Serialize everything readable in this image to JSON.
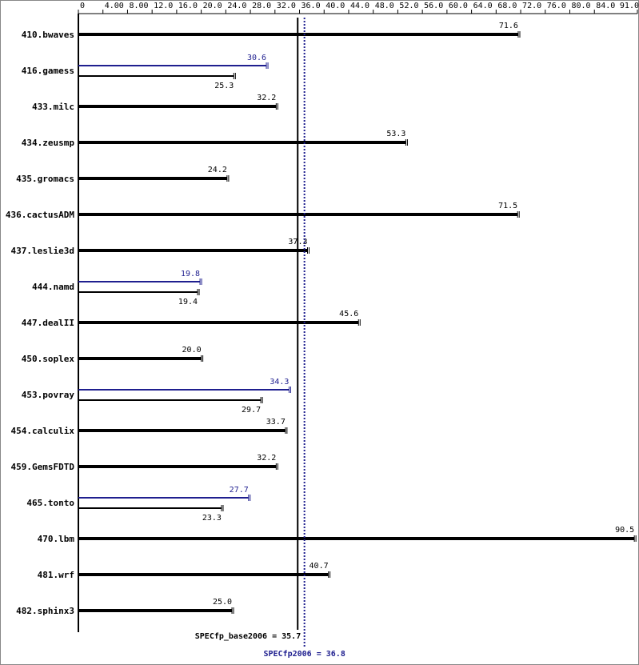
{
  "chart_data": {
    "type": "bar",
    "categories": [
      "410.bwaves",
      "416.gamess",
      "433.milc",
      "434.zeusmp",
      "435.gromacs",
      "436.cactusADM",
      "437.leslie3d",
      "444.namd",
      "447.dealII",
      "450.soplex",
      "453.povray",
      "454.calculix",
      "459.GemsFDTD",
      "465.tonto",
      "470.lbm",
      "481.wrf",
      "482.sphinx3"
    ],
    "series": [
      {
        "color": "#000000",
        "values": [
          71.6,
          25.3,
          32.2,
          53.3,
          24.2,
          71.5,
          37.3,
          19.4,
          45.6,
          20.0,
          29.7,
          33.7,
          32.2,
          23.3,
          90.5,
          40.7,
          25.0
        ],
        "value_labels": [
          "71.6",
          "25.3",
          "32.2",
          "53.3",
          "24.2",
          "71.5",
          "37.3",
          "19.4",
          "45.6",
          "20.0",
          "29.7",
          "33.7",
          "32.2",
          "23.3",
          "90.5",
          "40.7",
          "25.0"
        ]
      },
      {
        "color": "#1f1f8f",
        "values": [
          null,
          30.6,
          null,
          null,
          null,
          null,
          null,
          19.8,
          null,
          null,
          34.3,
          null,
          null,
          27.7,
          null,
          null,
          null
        ],
        "value_labels": [
          null,
          "30.6",
          null,
          null,
          null,
          null,
          null,
          "19.8",
          null,
          null,
          "34.3",
          null,
          null,
          "27.7",
          null,
          null,
          null
        ]
      }
    ],
    "xlim": [
      0,
      91
    ],
    "xticks": [
      0,
      {
        "value": 4,
        "label": "4.00"
      },
      {
        "value": 8,
        "label": "8.00"
      },
      {
        "value": 12,
        "label": "12.0"
      },
      {
        "value": 16,
        "label": "16.0"
      },
      {
        "value": 20,
        "label": "20.0"
      },
      {
        "value": 24,
        "label": "24.0"
      },
      {
        "value": 28,
        "label": "28.0"
      },
      {
        "value": 32,
        "label": "32.0"
      },
      {
        "value": 36,
        "label": "36.0"
      },
      {
        "value": 40,
        "label": "40.0"
      },
      {
        "value": 44,
        "label": "44.0"
      },
      {
        "value": 48,
        "label": "48.0"
      },
      {
        "value": 52,
        "label": "52.0"
      },
      {
        "value": 56,
        "label": "56.0"
      },
      {
        "value": 60,
        "label": "60.0"
      },
      {
        "value": 64,
        "label": "64.0"
      },
      {
        "value": 68,
        "label": "68.0"
      },
      {
        "value": 72,
        "label": "72.0"
      },
      {
        "value": 76,
        "label": "76.0"
      },
      {
        "value": 80,
        "label": "80.0"
      },
      {
        "value": 84,
        "label": "84.0"
      },
      {
        "value": 91,
        "label": "91.0"
      }
    ],
    "reference_lines": [
      {
        "label": "SPECfp_base2006 = 35.7",
        "value": 35.7,
        "color": "#000000"
      },
      {
        "label": "SPECfp2006 = 36.8",
        "value": 36.8,
        "color": "#1f1f8f"
      }
    ]
  }
}
